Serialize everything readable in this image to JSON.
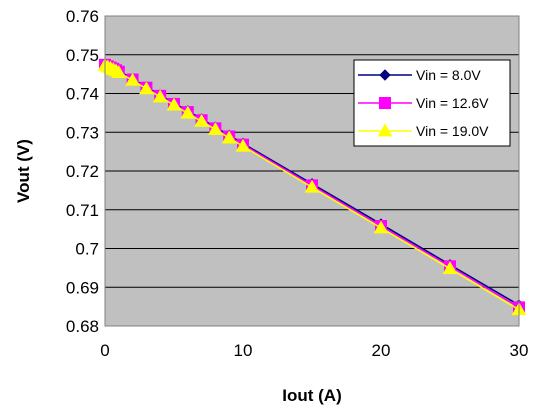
{
  "chart_data": {
    "type": "line",
    "xlabel": "Iout (A)",
    "ylabel": "Vout (V)",
    "xlim": [
      0,
      30
    ],
    "ylim": [
      0.68,
      0.76
    ],
    "xticks": [
      "0",
      "10",
      "20",
      "30"
    ],
    "yticks": [
      "0.68",
      "0.69",
      "0.7",
      "0.71",
      "0.72",
      "0.73",
      "0.74",
      "0.75",
      "0.76"
    ],
    "grid": "horizontal",
    "plot_background": "#c0c0c0",
    "legend_position": "top-right",
    "series": [
      {
        "name": "Vin = 8.0V",
        "color": "#000080",
        "marker": "diamond",
        "x": [
          0,
          0.2,
          0.4,
          0.6,
          0.8,
          1,
          2,
          3,
          4,
          5,
          6,
          7,
          8,
          9,
          10,
          15,
          20,
          25,
          30
        ],
        "y": [
          0.7475,
          0.7472,
          0.7469,
          0.7466,
          0.7462,
          0.7458,
          0.7438,
          0.7417,
          0.7396,
          0.7375,
          0.7355,
          0.7334,
          0.7313,
          0.7292,
          0.7271,
          0.7167,
          0.7063,
          0.6958,
          0.6854
        ]
      },
      {
        "name": "Vin = 12.6V",
        "color": "#ff00ff",
        "marker": "square",
        "x": [
          0,
          0.2,
          0.4,
          0.6,
          0.8,
          1,
          2,
          3,
          4,
          5,
          6,
          7,
          8,
          9,
          10,
          15,
          20,
          25,
          30
        ],
        "y": [
          0.7474,
          0.747,
          0.7467,
          0.7464,
          0.746,
          0.7456,
          0.7436,
          0.7415,
          0.7394,
          0.7373,
          0.7352,
          0.7331,
          0.731,
          0.7289,
          0.7268,
          0.7163,
          0.7058,
          0.6954,
          0.6848
        ]
      },
      {
        "name": "Vin = 19.0V",
        "color": "#ffff00",
        "marker": "triangle",
        "x": [
          0,
          0.2,
          0.4,
          0.6,
          0.8,
          1,
          2,
          3,
          4,
          5,
          6,
          7,
          8,
          9,
          10,
          15,
          20,
          25,
          30
        ],
        "y": [
          0.7472,
          0.7468,
          0.7465,
          0.7462,
          0.7458,
          0.7454,
          0.7434,
          0.7412,
          0.7391,
          0.737,
          0.7349,
          0.7328,
          0.7307,
          0.7285,
          0.7264,
          0.7158,
          0.7053,
          0.6948,
          0.6842
        ]
      }
    ]
  }
}
